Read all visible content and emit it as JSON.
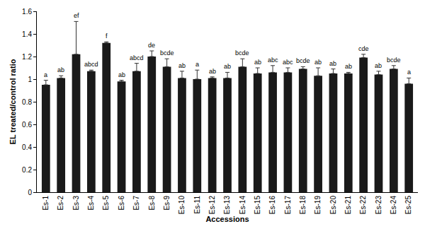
{
  "chart_data": {
    "type": "bar",
    "x_label": "Accessions",
    "y_label": "EL treated/control ratio",
    "categories": [
      "Es-1",
      "Es-2",
      "Es-3",
      "Es-4",
      "Es-5",
      "Es-6",
      "Es-7",
      "Es-8",
      "Es-9",
      "Es-10",
      "Es-11",
      "Es-12",
      "Es-13",
      "Es-14",
      "Es-15",
      "Es-16",
      "Es-17",
      "Es-18",
      "Es-19",
      "Es-20",
      "Es-21",
      "Es-22",
      "Es-23",
      "Es-24",
      "Es-25"
    ],
    "values": [
      0.95,
      1.01,
      1.22,
      1.07,
      1.32,
      0.98,
      1.07,
      1.2,
      1.11,
      1.01,
      1.0,
      1.01,
      1.01,
      1.11,
      1.05,
      1.06,
      1.06,
      1.09,
      1.03,
      1.05,
      1.05,
      1.19,
      1.04,
      1.09,
      0.96
    ],
    "error": [
      0.04,
      0.02,
      0.29,
      0.01,
      0.01,
      0.01,
      0.07,
      0.05,
      0.07,
      0.06,
      0.08,
      0.01,
      0.05,
      0.07,
      0.05,
      0.06,
      0.04,
      0.02,
      0.07,
      0.04,
      0.01,
      0.03,
      0.03,
      0.03,
      0.05
    ],
    "annotations": [
      "a",
      "ab",
      "ef",
      "abcd",
      "f",
      "ab",
      "abcd",
      "de",
      "bcde",
      "ab",
      "a",
      "ab",
      "ab",
      "bcde",
      "ab",
      "abc",
      "abc",
      "bcde",
      "ab",
      "ab",
      "ab",
      "cde",
      "ab",
      "bcde",
      "a"
    ],
    "color": "#1a1a1a",
    "ylim": [
      0,
      1.6
    ],
    "yticks": [
      0,
      0.2,
      0.4,
      0.6,
      0.8,
      1,
      1.2,
      1.4,
      1.6
    ],
    "grid": false
  }
}
